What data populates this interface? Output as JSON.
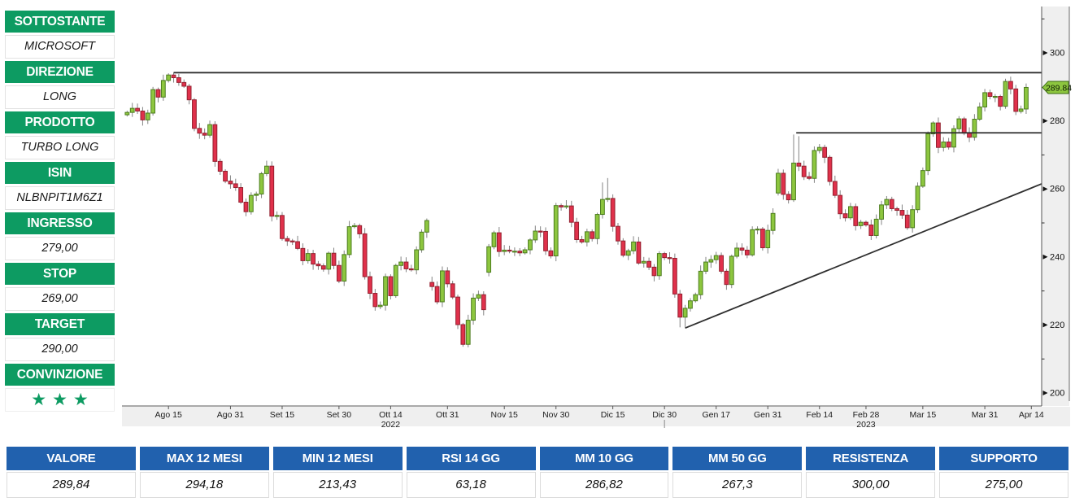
{
  "sidebar": {
    "sections": [
      {
        "label": "SOTTOSTANTE",
        "value": "MICROSOFT"
      },
      {
        "label": "DIREZIONE",
        "value": "LONG"
      },
      {
        "label": "PRODOTTO",
        "value": "TURBO LONG"
      },
      {
        "label": "ISIN",
        "value": "NLBNPIT1M6Z1"
      },
      {
        "label": "INGRESSO",
        "value": "279,00"
      },
      {
        "label": "STOP",
        "value": "269,00"
      },
      {
        "label": "TARGET",
        "value": "290,00"
      },
      {
        "label": "CONVINZIONE",
        "value": "★★★"
      }
    ]
  },
  "summary_table": {
    "columns": [
      {
        "label": "VALORE",
        "value": "289,84"
      },
      {
        "label": "MAX 12 MESI",
        "value": "294,18"
      },
      {
        "label": "MIN 12 MESI",
        "value": "213,43"
      },
      {
        "label": "RSI 14 GG",
        "value": "63,18"
      },
      {
        "label": "MM 10 GG",
        "value": "286,82"
      },
      {
        "label": "MM 50 GG",
        "value": "267,3"
      },
      {
        "label": "RESISTENZA",
        "value": "300,00"
      },
      {
        "label": "SUPPORTO",
        "value": "275,00"
      }
    ]
  },
  "colors": {
    "accent_green": "#0d9b62",
    "header_blue": "#2161ae",
    "candle_up": "#8dc63f",
    "candle_up_stroke": "#4c7d1e",
    "candle_down": "#e0314b",
    "candle_down_stroke": "#93202f",
    "wick": "#848484",
    "trend_line": "#2f2f2f",
    "axis": "#555555",
    "tick_text": "#1c1c1c",
    "strip_bg": "#efefef",
    "tag_fill": "#8dc63f",
    "tag_stroke": "#3a6b12"
  },
  "chart_data": {
    "type": "candlestick",
    "symbol": "MICROSOFT",
    "title": "",
    "grid": false,
    "legend_position": "none",
    "price_scale_right": true,
    "y_range": [
      196,
      313
    ],
    "y_axis": {
      "majors": [
        300,
        280,
        260,
        240,
        220,
        200
      ],
      "minors": [
        310,
        270,
        250,
        230,
        210
      ],
      "last_price_label": "289.84",
      "last_price": 289.84
    },
    "x_ticks": [
      {
        "label": "Ago 15",
        "i": 8
      },
      {
        "label": "Ago 31",
        "i": 20
      },
      {
        "label": "Set 15",
        "i": 30
      },
      {
        "label": "Set 30",
        "i": 41
      },
      {
        "label": "Ott 14",
        "i": 51,
        "sub": "2022"
      },
      {
        "label": "Ott 31",
        "i": 62
      },
      {
        "label": "Nov 15",
        "i": 73
      },
      {
        "label": "Nov 30",
        "i": 83
      },
      {
        "label": "Dic 15",
        "i": 94
      },
      {
        "label": "Dic 30",
        "i": 104,
        "year_tick": true
      },
      {
        "label": "Gen 17",
        "i": 114
      },
      {
        "label": "Gen 31",
        "i": 124
      },
      {
        "label": "Feb 14",
        "i": 134
      },
      {
        "label": "Feb 28",
        "i": 143,
        "sub": "2023"
      },
      {
        "label": "Mar 15",
        "i": 154
      },
      {
        "label": "Mar 31",
        "i": 166
      },
      {
        "label": "Apr 14",
        "i": 175
      }
    ],
    "first_open": 281.8,
    "closes": [
      282.5,
      283.7,
      282.9,
      280.3,
      282.3,
      289.2,
      287.0,
      291.9,
      293.5,
      292.7,
      291.3,
      290.2,
      286.2,
      277.8,
      276.4,
      275.8,
      278.9,
      268.1,
      265.2,
      262.3,
      261.5,
      260.4,
      256.1,
      253.3,
      258.1,
      258.5,
      264.5,
      266.7,
      252.0,
      252.2,
      245.4,
      244.7,
      244.5,
      242.5,
      238.9,
      241.0,
      237.9,
      237.4,
      236.4,
      241.1,
      237.5,
      232.9,
      240.7,
      248.9,
      249.2,
      246.8,
      234.2,
      229.3,
      225.4,
      225.8,
      234.2,
      228.6,
      237.5,
      238.5,
      236.5,
      236.2,
      242.1,
      247.3,
      250.7,
      231.3,
      226.8,
      235.9,
      232.1,
      228.2,
      220.1,
      214.3,
      221.4,
      227.9,
      228.9,
      224.5,
      243.0,
      247.1,
      241.6,
      242.0,
      241.7,
      241.7,
      241.2,
      242.1,
      245.0,
      247.6,
      247.5,
      241.8,
      240.3,
      255.1,
      254.7,
      255.0,
      250.2,
      245.1,
      244.4,
      247.4,
      245.4,
      252.5,
      256.9,
      257.2,
      249.0,
      244.7,
      240.5,
      241.8,
      244.4,
      238.2,
      238.7,
      237.0,
      234.5,
      241.0,
      239.8,
      239.6,
      229.1,
      222.3,
      224.9,
      227.1,
      228.9,
      235.8,
      238.5,
      239.2,
      240.4,
      235.8,
      231.9,
      240.2,
      242.6,
      242.0,
      240.6,
      248.0,
      248.2,
      242.7,
      247.8,
      252.8,
      264.6,
      258.4,
      256.8,
      267.6,
      266.7,
      263.6,
      263.1,
      271.3,
      272.2,
      269.3,
      262.2,
      258.1,
      252.7,
      251.5,
      254.8,
      249.2,
      250.2,
      249.4,
      246.3,
      251.1,
      255.3,
      256.9,
      254.2,
      253.7,
      252.3,
      248.6,
      253.9,
      260.8,
      265.4,
      276.2,
      279.4,
      272.2,
      273.8,
      272.3,
      277.7,
      280.6,
      276.4,
      275.2,
      280.5,
      284.1,
      288.3,
      287.2,
      287.2,
      284.3,
      291.6,
      289.4,
      282.8,
      283.5,
      289.84
    ],
    "open_overrides": {
      "59": 232.5,
      "70": 235.5,
      "126": 258.8
    },
    "high_overrides": {
      "8": 294.0,
      "9": 294.18,
      "43": 250.6,
      "92": 261.9,
      "93": 263.2,
      "129": 276.0,
      "130": 275.5,
      "156": 279.9,
      "170": 292.4,
      "174": 291.0
    },
    "low_overrides": {
      "64": 218.8,
      "65": 213.6,
      "66": 213.43,
      "107": 219.3,
      "108": 219.4
    },
    "annotations": [
      {
        "name": "resistance-12m-max",
        "i1": 9.0,
        "p1": 294.18,
        "i2": 177.1,
        "p2": 294.18
      },
      {
        "name": "resistance-february",
        "i1": 129.5,
        "p1": 276.5,
        "i2": 177.1,
        "p2": 276.5
      },
      {
        "name": "ascending-trendline",
        "i1": 108.0,
        "p1": 219.1,
        "i2": 177.1,
        "p2": 261.5
      }
    ]
  }
}
